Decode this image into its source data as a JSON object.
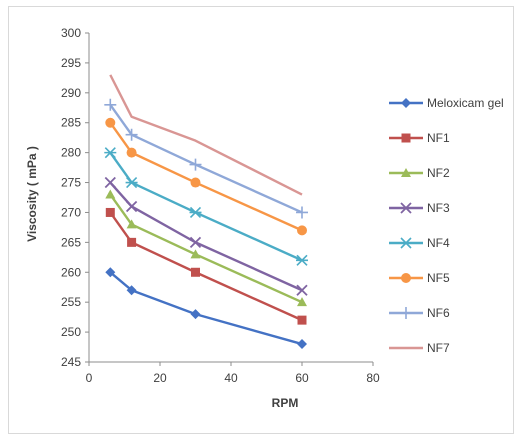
{
  "chart_data": {
    "type": "line",
    "xlabel": "RPM",
    "ylabel": "Viscosity ( mPa )",
    "xlim": [
      0,
      80
    ],
    "ylim": [
      245,
      300
    ],
    "x_ticks": [
      0,
      20,
      40,
      60,
      80
    ],
    "y_ticks": [
      245,
      250,
      255,
      260,
      265,
      270,
      275,
      280,
      285,
      290,
      295,
      300
    ],
    "legend_position": "right",
    "grid": false,
    "x": [
      6,
      12,
      30,
      60
    ],
    "series": [
      {
        "name": "Meloxicam gel",
        "color": "#4472c4",
        "marker": "diamond",
        "values": [
          260,
          257,
          253,
          248
        ]
      },
      {
        "name": "NF1",
        "color": "#c0504d",
        "marker": "square",
        "values": [
          270,
          265,
          260,
          252
        ]
      },
      {
        "name": "NF2",
        "color": "#9bbb59",
        "marker": "triangle",
        "values": [
          273,
          268,
          263,
          255
        ]
      },
      {
        "name": "NF3",
        "color": "#7f64a2",
        "marker": "x",
        "values": [
          275,
          271,
          265,
          257
        ]
      },
      {
        "name": "NF4",
        "color": "#4bacc6",
        "marker": "star",
        "values": [
          280,
          275,
          270,
          262
        ]
      },
      {
        "name": "NF5",
        "color": "#f79646",
        "marker": "circle",
        "values": [
          285,
          280,
          275,
          267
        ]
      },
      {
        "name": "NF6",
        "color": "#8fa8d8",
        "marker": "plus",
        "values": [
          288,
          283,
          278,
          270
        ]
      },
      {
        "name": "NF7",
        "color": "#d99694",
        "marker": "none",
        "values": [
          293,
          286,
          282,
          273
        ]
      }
    ]
  }
}
